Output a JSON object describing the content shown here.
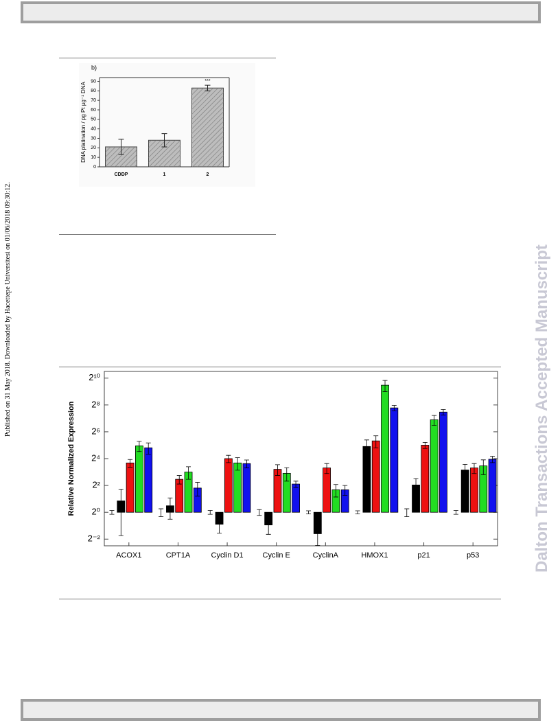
{
  "side_note": "Published on 31 May 2018. Downloaded by Hacettepe Universitesi on 01/06/2018 09:30:12.",
  "watermark": "Dalton Transactions Accepted Manuscript",
  "chart_data": [
    {
      "type": "bar",
      "title": "b)",
      "ylabel": "DNA platination / pg Pt µg⁻¹ DNA",
      "categories": [
        "CDDP",
        "1",
        "2"
      ],
      "values": [
        21,
        28,
        83
      ],
      "errors": [
        8,
        7,
        3
      ],
      "annotations": [
        null,
        null,
        "***"
      ],
      "color": "#bdbdbd",
      "ylim": [
        0,
        94
      ],
      "yticks": [
        0,
        10,
        20,
        30,
        40,
        50,
        60,
        70,
        80,
        90
      ]
    },
    {
      "type": "grouped-bar",
      "ylabel": "Relative Normalized Expression",
      "log_base": 2,
      "categories": [
        "ACOX1",
        "CPT1A",
        "Cyclin D1",
        "Cyclin E",
        "CyclinA",
        "HMOX1",
        "p21",
        "p53"
      ],
      "series": [
        {
          "color": "#ffffff",
          "values": [
            1,
            1,
            1,
            1,
            1,
            1,
            1,
            1
          ],
          "errors": [
            0.1,
            0.2,
            0.1,
            0.15,
            0.08,
            0.08,
            0.2,
            0.1
          ]
        },
        {
          "color": "#000000",
          "values": [
            1.8,
            1.4,
            0.54,
            0.52,
            0.33,
            30,
            4.1,
            8.9
          ],
          "errors": [
            1.5,
            0.7,
            0.2,
            0.2,
            0.15,
            12,
            1.6,
            3
          ]
        },
        {
          "color": "#ee1111",
          "values": [
            12.8,
            5.5,
            16,
            9.2,
            9.9,
            40,
            32,
            9.9
          ],
          "errors": [
            2.5,
            1.2,
            3,
            2.5,
            2.5,
            12,
            5,
            2.5
          ]
        },
        {
          "color": "#22dd22",
          "values": [
            31,
            8,
            12.8,
            7.5,
            3.2,
            710,
            119,
            11
          ],
          "errors": [
            8,
            2.5,
            4,
            2.5,
            1,
            200,
            30,
            4
          ]
        },
        {
          "color": "#1111ee",
          "values": [
            28,
            3.5,
            12.4,
            4.3,
            3.2,
            220,
            177,
            15.5
          ],
          "errors": [
            8,
            1.2,
            2.5,
            0.7,
            0.8,
            30,
            25,
            2.5
          ]
        }
      ],
      "ylim": [
        0.177,
        1448
      ],
      "yticks": [
        {
          "value": 0.25,
          "label": "2⁻²"
        },
        {
          "value": 1,
          "label": "2⁰"
        },
        {
          "value": 4,
          "label": "2²"
        },
        {
          "value": 16,
          "label": "2⁴"
        },
        {
          "value": 64,
          "label": "2⁶"
        },
        {
          "value": 256,
          "label": "2⁸"
        },
        {
          "value": 1024,
          "label": "2¹⁰"
        }
      ]
    }
  ]
}
